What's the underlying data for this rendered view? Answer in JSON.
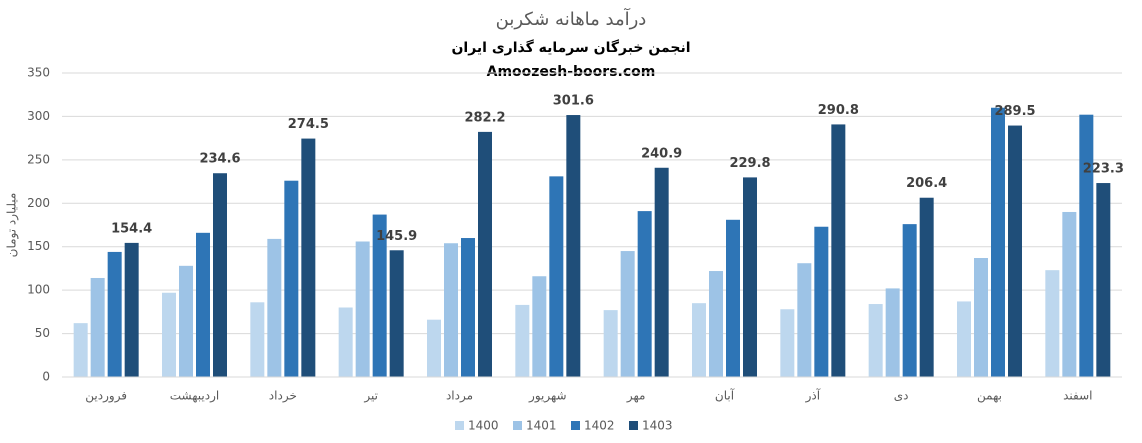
{
  "chart_data": {
    "type": "bar",
    "title": "درآمد ماهانه شکربن",
    "subtitle": "انجمن خبرگان سرمایه گذاری ایران",
    "source": "Amoozesh-boors.com",
    "y_label": "میلیارد تومان",
    "categories": [
      "فروردین",
      "اردیبهشت",
      "خرداد",
      "تیر",
      "مرداد",
      "شهریور",
      "مهر",
      "آبان",
      "آذر",
      "دی",
      "بهمن",
      "اسفند"
    ],
    "series": [
      {
        "name": "1400",
        "color": "#bdd7ee",
        "values": [
          62,
          97,
          86,
          80,
          66,
          83,
          77,
          85,
          78,
          84,
          87,
          123
        ]
      },
      {
        "name": "1401",
        "color": "#9dc3e6",
        "values": [
          114,
          128,
          159,
          156,
          154,
          116,
          145,
          122,
          131,
          102,
          137,
          190
        ]
      },
      {
        "name": "1402",
        "color": "#2e75b6",
        "values": [
          144,
          166,
          226,
          187,
          160,
          231,
          191,
          181,
          173,
          176,
          310,
          302
        ]
      },
      {
        "name": "1403",
        "color": "#1f4e79",
        "values": [
          154.4,
          234.6,
          274.5,
          145.9,
          282.2,
          301.6,
          240.9,
          229.8,
          290.8,
          206.4,
          289.5,
          223.3
        ],
        "data_labels": true
      }
    ],
    "ylim": [
      0,
      350
    ],
    "yticks": [
      0,
      50,
      100,
      150,
      200,
      250,
      300,
      350
    ],
    "grid": true,
    "legend": "bottom"
  }
}
